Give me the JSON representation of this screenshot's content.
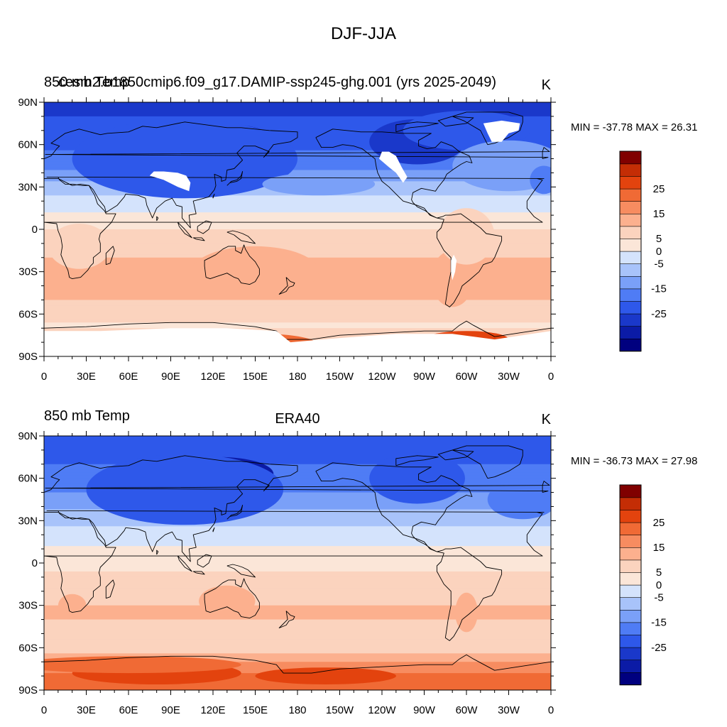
{
  "figure_title": "DJF-JJA",
  "chart_data": [
    {
      "type": "heatmap",
      "title_left": "850 mb Temp",
      "title_overlay": "cesm2.b1850cmip6.f09_g17.DAMIP-ssp245-ghg.001 (yrs 2025-2049)",
      "title_center": "",
      "units": "K",
      "stats_text": "MIN = -37.78 MAX =  26.31",
      "min": -37.78,
      "max": 26.31,
      "missing_regions": [
        "Tibetan Plateau",
        "Rocky Mountains",
        "Greenland",
        "Andes",
        "Antarctica"
      ],
      "x_ticks": [
        "0",
        "30E",
        "60E",
        "90E",
        "120E",
        "150E",
        "180",
        "150W",
        "120W",
        "90W",
        "60W",
        "30W",
        "0"
      ],
      "y_ticks": [
        "90N",
        "60N",
        "30N",
        "0",
        "30S",
        "60S",
        "90S"
      ],
      "colorbar_labels": [
        "25",
        "15",
        "5",
        "0",
        "-5",
        "-15",
        "-25"
      ]
    },
    {
      "type": "heatmap",
      "title_left": "850 mb Temp",
      "title_center": "ERA40",
      "units": "K",
      "stats_text": "MIN = -36.73 MAX =  27.98",
      "min": -36.73,
      "max": 27.98,
      "x_ticks": [
        "0",
        "30E",
        "60E",
        "90E",
        "120E",
        "150E",
        "180",
        "150W",
        "120W",
        "90W",
        "60W",
        "30W",
        "0"
      ],
      "y_ticks": [
        "90N",
        "60N",
        "30N",
        "0",
        "30S",
        "60S",
        "90S"
      ],
      "colorbar_labels": [
        "25",
        "15",
        "5",
        "0",
        "-5",
        "-15",
        "-25"
      ]
    }
  ],
  "colorbar": {
    "levels": [
      -35,
      -30,
      -25,
      -20,
      -15,
      -10,
      -5,
      0,
      5,
      10,
      15,
      20,
      25,
      30
    ],
    "colors": [
      "#ffffff",
      "#fbd3be",
      "#fcb08e",
      "#f78c60",
      "#f06a35",
      "#e3430e",
      "#c42d05",
      "#a41704",
      "#800000",
      "#00007f",
      "#0b1ba6",
      "#1a38ca",
      "#2e58ea",
      "#4f7cf5",
      "#7aa0f8",
      "#a8c3fa",
      "#d4e3fc",
      "#fbe6d8"
    ],
    "palette_neg": [
      "#00007f",
      "#0b1ba6",
      "#1a38ca",
      "#2e58ea",
      "#4f7cf5",
      "#7aa0f8",
      "#a8c3fa",
      "#d4e3fc"
    ],
    "palette_pos": [
      "#fbe6d8",
      "#fbd3be",
      "#fcb08e",
      "#f78c60",
      "#f06a35",
      "#e3430e",
      "#c42d05",
      "#800000"
    ]
  }
}
